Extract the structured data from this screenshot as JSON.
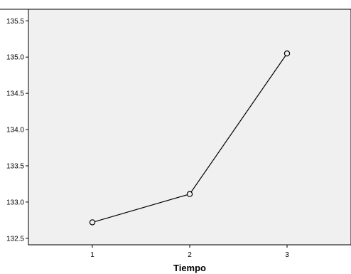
{
  "chart_data": {
    "type": "line",
    "title": "",
    "xlabel": "Tiempo",
    "ylabel": "",
    "categories": [
      "1",
      "2",
      "3"
    ],
    "series": [
      {
        "values": [
          132.72,
          133.11,
          135.05
        ]
      }
    ],
    "ylim": [
      132.41,
      135.66
    ],
    "yticks": [
      132.5,
      133.0,
      133.5,
      134.0,
      134.5,
      135.0,
      135.5
    ],
    "ytick_labels": [
      "132.5",
      "133.0",
      "133.5",
      "134.0",
      "134.5",
      "135.0",
      "135.5"
    ],
    "grid": false,
    "legend": "none",
    "marker": "open-circle",
    "colors": {
      "plot_background": "#f0f0f0",
      "line": "#000000",
      "marker_fill": "#f0f0f0",
      "axis": "#000000"
    }
  }
}
